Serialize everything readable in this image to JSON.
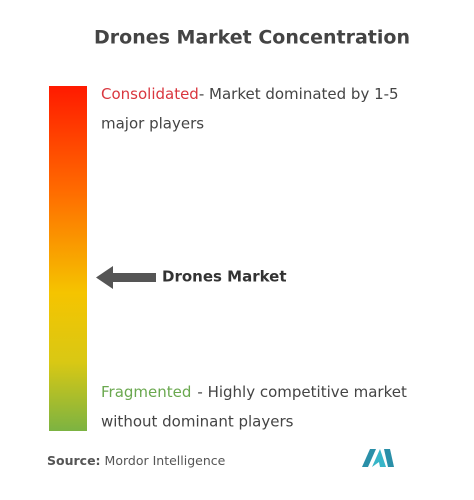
{
  "title": "Drones Market Concentration",
  "consolidated": {
    "label": "Consolidated",
    "lines": [
      "- Market dominated by 1-5",
      "major players"
    ]
  },
  "marker": {
    "label": "Drones Market"
  },
  "fragmented": {
    "label": "Fragmented",
    "lines": [
      "- Highly competitive market",
      "without dominant players"
    ]
  },
  "source": {
    "label": "Source:",
    "text": "Mordor Intelligence"
  }
}
